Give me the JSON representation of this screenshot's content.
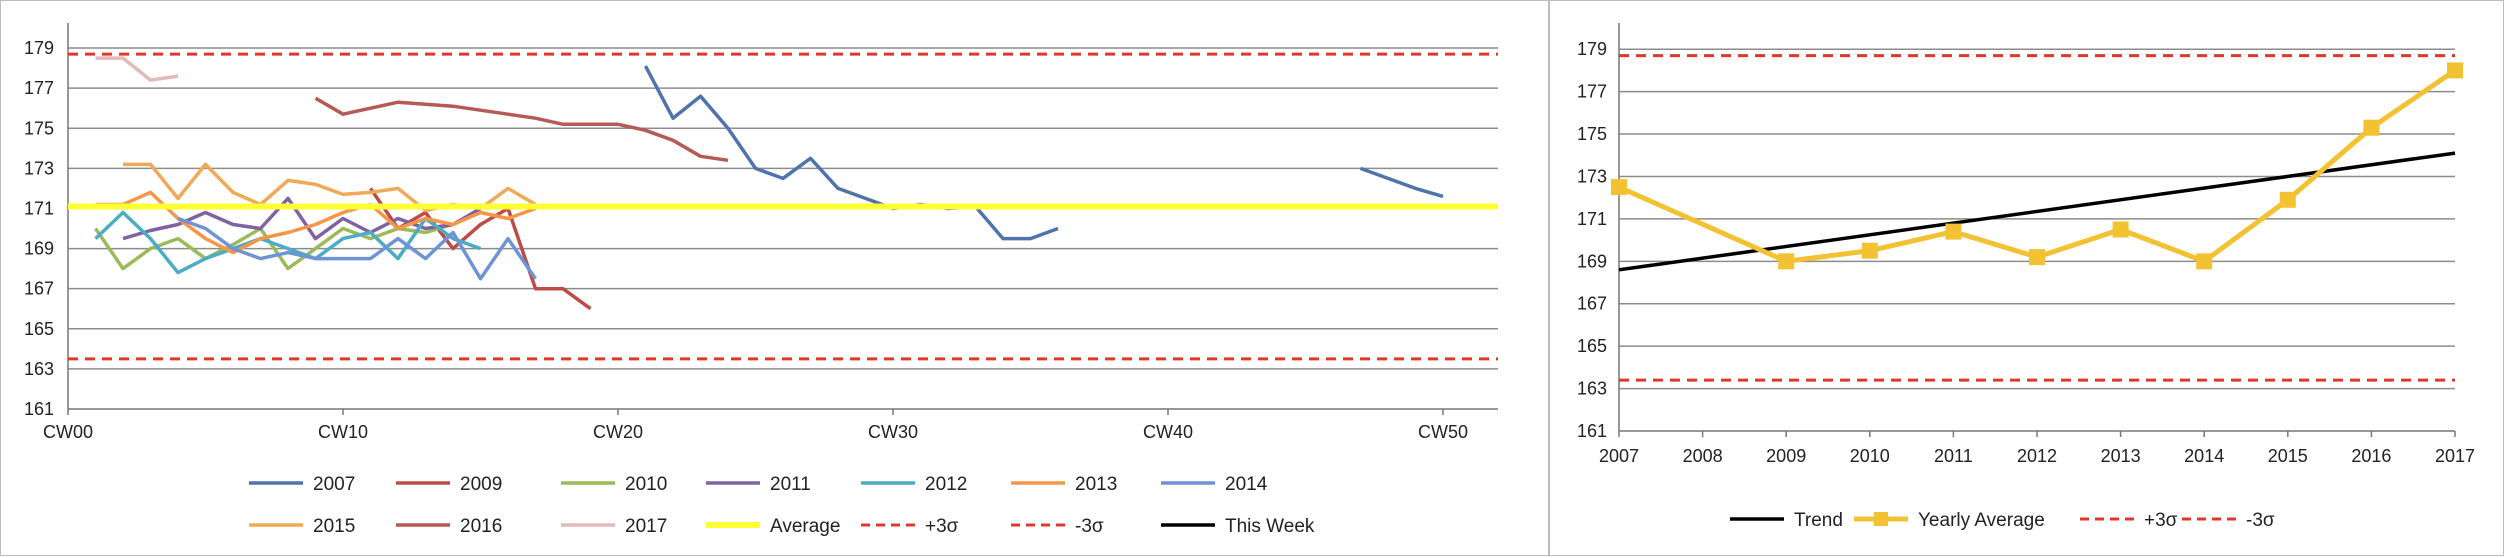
{
  "chart_data": [
    {
      "type": "line",
      "x_axis_kind": "calendar_week",
      "xlim": [
        0,
        52
      ],
      "ylim": [
        161,
        180
      ],
      "x_ticks": [
        0,
        10,
        20,
        30,
        40,
        50
      ],
      "x_tick_labels": [
        "CW00",
        "CW10",
        "CW20",
        "CW30",
        "CW40",
        "CW50"
      ],
      "y_ticks": [
        161,
        163,
        165,
        167,
        169,
        171,
        173,
        175,
        177,
        179
      ],
      "y_tick_labels": [
        "161",
        "163",
        "165",
        "167",
        "169",
        "171",
        "173",
        "175",
        "177",
        "179"
      ],
      "grid": true,
      "legend_position": "bottom",
      "series": [
        {
          "name": "2007",
          "color": "#4f73ad",
          "style": "solid",
          "x": [
            21,
            22,
            23,
            24,
            25,
            26,
            27,
            28,
            29,
            30,
            31,
            32,
            33,
            34,
            35,
            36,
            null,
            47,
            48,
            49,
            50
          ],
          "y": [
            178.1,
            175.5,
            176.6,
            175.0,
            173.0,
            172.5,
            173.5,
            172.0,
            171.5,
            171.0,
            171.2,
            171.0,
            171.1,
            169.5,
            169.5,
            170.0,
            null,
            173.0,
            172.5,
            172.0,
            171.6
          ]
        },
        {
          "name": "2009",
          "color": "#be4b48",
          "style": "solid",
          "x": [
            11,
            12,
            13,
            14,
            15,
            16,
            17,
            18,
            19
          ],
          "y": [
            172.0,
            170.0,
            170.8,
            169.0,
            170.2,
            171.0,
            167.0,
            167.0,
            166.0
          ]
        },
        {
          "name": "2010",
          "color": "#9bbb59",
          "style": "solid",
          "x": [
            1,
            2,
            3,
            4,
            5,
            6,
            7,
            8,
            9,
            10,
            11,
            12,
            13,
            14
          ],
          "y": [
            170.0,
            168.0,
            169.0,
            169.5,
            168.5,
            169.2,
            170.0,
            168.0,
            169.0,
            170.0,
            169.5,
            170.0,
            169.8,
            170.2
          ]
        },
        {
          "name": "2011",
          "color": "#7f62a1",
          "style": "solid",
          "x": [
            2,
            3,
            4,
            5,
            6,
            7,
            8,
            9,
            10,
            11,
            12,
            13,
            14,
            15
          ],
          "y": [
            169.5,
            169.9,
            170.2,
            170.8,
            170.2,
            170.0,
            171.5,
            169.5,
            170.5,
            169.8,
            170.5,
            170.0,
            170.2,
            171.0
          ]
        },
        {
          "name": "2012",
          "color": "#4bacc6",
          "style": "solid",
          "x": [
            1,
            2,
            3,
            4,
            5,
            6,
            7,
            8,
            9,
            10,
            11,
            12,
            13,
            14,
            15
          ],
          "y": [
            169.5,
            170.8,
            169.5,
            167.8,
            168.5,
            169.0,
            169.5,
            169.0,
            168.5,
            169.5,
            169.8,
            168.5,
            170.5,
            169.5,
            169.0
          ]
        },
        {
          "name": "2013",
          "color": "#f79646",
          "style": "solid",
          "x": [
            1,
            2,
            3,
            4,
            5,
            6,
            7,
            8,
            9,
            10,
            11,
            12,
            13,
            14,
            15,
            16,
            17
          ],
          "y": [
            171.2,
            171.2,
            171.8,
            170.5,
            169.5,
            168.8,
            169.5,
            169.8,
            170.2,
            170.8,
            171.2,
            170.0,
            170.5,
            170.2,
            170.8,
            170.5,
            171.0
          ]
        },
        {
          "name": "2014",
          "color": "#6e94d6",
          "style": "solid",
          "x": [
            4,
            5,
            6,
            7,
            8,
            9,
            10,
            11,
            12,
            13,
            14,
            15,
            16,
            17
          ],
          "y": [
            170.5,
            170.0,
            169.0,
            168.5,
            168.8,
            168.5,
            168.5,
            168.5,
            169.5,
            168.5,
            169.8,
            167.5,
            169.5,
            167.5
          ]
        },
        {
          "name": "2015",
          "color": "#f0a957",
          "style": "solid",
          "x": [
            2,
            3,
            4,
            5,
            6,
            7,
            8,
            9,
            10,
            11,
            12,
            13,
            14,
            15,
            16,
            17
          ],
          "y": [
            173.2,
            173.2,
            171.5,
            173.2,
            171.8,
            171.2,
            172.4,
            172.2,
            171.7,
            171.8,
            172.0,
            170.9,
            171.2,
            171.0,
            172.0,
            171.2
          ]
        },
        {
          "name": "2016",
          "color": "#b65a55",
          "style": "solid",
          "x": [
            9,
            10,
            11,
            12,
            13,
            14,
            15,
            16,
            17,
            18,
            19,
            20,
            21,
            22,
            23,
            24
          ],
          "y": [
            176.5,
            175.7,
            176.0,
            176.3,
            176.2,
            176.1,
            175.9,
            175.7,
            175.5,
            175.2,
            175.2,
            175.2,
            174.9,
            174.4,
            173.6,
            173.4
          ]
        },
        {
          "name": "2017",
          "color": "#e4b9ba",
          "style": "solid",
          "x": [
            1,
            2,
            3,
            4
          ],
          "y": [
            178.5,
            178.5,
            177.4,
            177.6
          ]
        },
        {
          "name": "Average",
          "color": "#ffff33",
          "style": "thick",
          "x": [
            0,
            52
          ],
          "y": [
            171.1,
            171.1
          ]
        },
        {
          "name": "+3σ",
          "color": "#e0372b",
          "style": "dashed",
          "x": [
            0,
            52
          ],
          "y": [
            178.7,
            178.7
          ]
        },
        {
          "name": "-3σ",
          "color": "#e0372b",
          "style": "dashed",
          "x": [
            0,
            52
          ],
          "y": [
            163.5,
            163.5
          ]
        },
        {
          "name": "This Week",
          "color": "#000000",
          "style": "solid",
          "x": [],
          "y": []
        }
      ],
      "legend_rows": [
        [
          "2007",
          "2009",
          "2010",
          "2011",
          "2012",
          "2013",
          "2014"
        ],
        [
          "2015",
          "2016",
          "2017",
          "Average",
          "+3σ",
          "-3σ",
          "This Week"
        ]
      ]
    },
    {
      "type": "line",
      "categories": [
        "2007",
        "2008",
        "2009",
        "2010",
        "2011",
        "2012",
        "2013",
        "2014",
        "2015",
        "2016",
        "2017"
      ],
      "ylim": [
        161,
        180
      ],
      "y_ticks": [
        161,
        163,
        165,
        167,
        169,
        171,
        173,
        175,
        177,
        179
      ],
      "y_tick_labels": [
        "161",
        "163",
        "165",
        "167",
        "169",
        "171",
        "173",
        "175",
        "177",
        "179"
      ],
      "grid": true,
      "legend_position": "bottom",
      "series": [
        {
          "name": "Trend",
          "color": "#000000",
          "style": "solid",
          "values": [
            168.6,
            null,
            null,
            null,
            null,
            null,
            null,
            null,
            null,
            null,
            174.1
          ]
        },
        {
          "name": "Yearly Average",
          "color": "#f2c233",
          "style": "thick-markers",
          "values": [
            172.5,
            null,
            169.0,
            169.5,
            170.4,
            169.2,
            170.5,
            169.0,
            171.9,
            175.3,
            178.0
          ]
        },
        {
          "name": "+3σ",
          "color": "#e0372b",
          "style": "dashed",
          "values": [
            178.7,
            178.7,
            178.7,
            178.7,
            178.7,
            178.7,
            178.7,
            178.7,
            178.7,
            178.7,
            178.7
          ]
        },
        {
          "name": "-3σ",
          "color": "#e0372b",
          "style": "dashed",
          "values": [
            163.4,
            163.4,
            163.4,
            163.4,
            163.4,
            163.4,
            163.4,
            163.4,
            163.4,
            163.4,
            163.4
          ]
        }
      ]
    }
  ]
}
